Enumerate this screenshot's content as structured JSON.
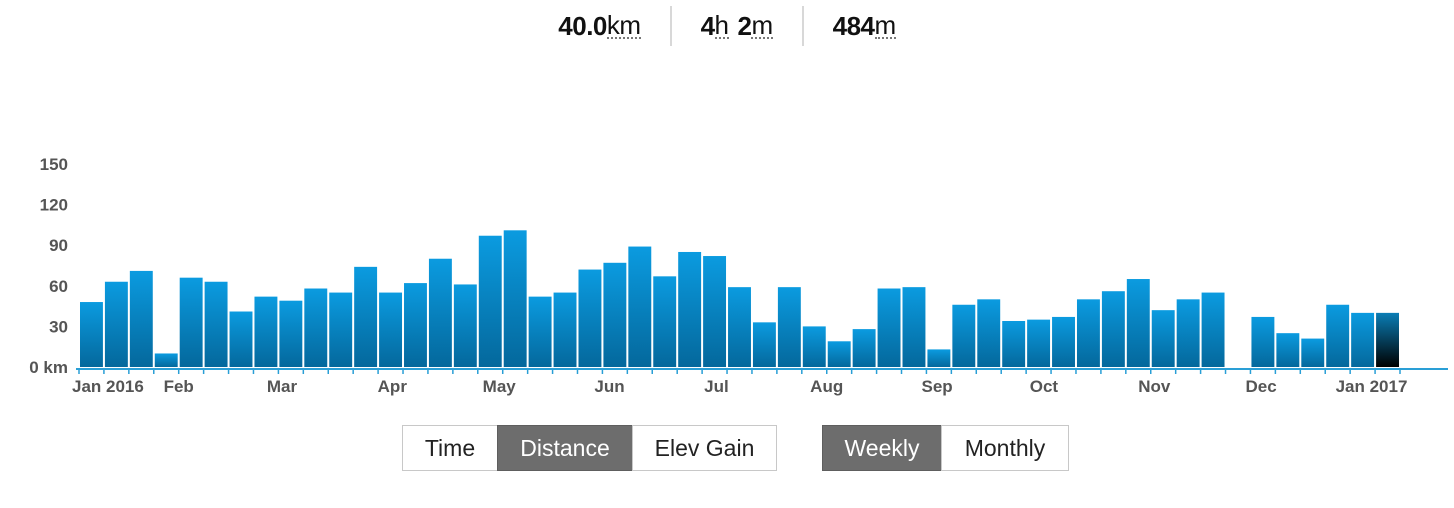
{
  "stats": {
    "distance": {
      "value": "40.0",
      "unit": "km"
    },
    "time": {
      "hours": "4",
      "hours_unit": "h",
      "minutes": "2",
      "minutes_unit": "m"
    },
    "elevation": {
      "value": "484",
      "unit": "m"
    }
  },
  "chart_data": {
    "type": "bar",
    "ylabel": "",
    "y_unit_label": "0 km",
    "ylim": [
      0,
      150
    ],
    "yticks": [
      0,
      30,
      60,
      90,
      120,
      150
    ],
    "grid": false,
    "x_start": "2016-01-04",
    "x_end": "2017-01-02",
    "x_tick_labels": [
      {
        "label": "Jan 2016",
        "date": "2016-01-01"
      },
      {
        "label": "Feb",
        "date": "2016-02-01"
      },
      {
        "label": "Mar",
        "date": "2016-03-01"
      },
      {
        "label": "Apr",
        "date": "2016-04-01"
      },
      {
        "label": "May",
        "date": "2016-05-01"
      },
      {
        "label": "Jun",
        "date": "2016-06-01"
      },
      {
        "label": "Jul",
        "date": "2016-07-01"
      },
      {
        "label": "Aug",
        "date": "2016-08-01"
      },
      {
        "label": "Sep",
        "date": "2016-09-01"
      },
      {
        "label": "Oct",
        "date": "2016-10-01"
      },
      {
        "label": "Nov",
        "date": "2016-11-01"
      },
      {
        "label": "Dec",
        "date": "2016-12-01"
      },
      {
        "label": "Jan 2017",
        "date": "2017-01-01"
      }
    ],
    "series": [
      {
        "values": [
          48,
          63,
          71,
          10,
          66,
          63,
          41,
          52,
          49,
          58,
          55,
          74,
          55,
          62,
          80,
          61,
          97,
          101,
          52,
          55,
          72,
          77,
          89,
          67,
          85,
          82,
          59,
          33,
          59,
          30,
          19,
          28,
          58,
          59,
          13,
          46,
          50,
          34,
          35,
          37,
          50,
          56,
          65,
          42,
          50,
          55,
          0,
          37,
          25,
          21,
          46,
          40,
          40
        ]
      }
    ],
    "highlighted_index": 52,
    "colors": {
      "bar_top": "#0b9be0",
      "bar_bottom": "#04689c",
      "highlight_top": "#0a7db5",
      "highlight_bottom": "#000000",
      "axis": "#2a9fd6"
    }
  },
  "controls": {
    "metric": [
      "Time",
      "Distance",
      "Elev Gain"
    ],
    "metric_selected": "Distance",
    "period": [
      "Weekly",
      "Monthly"
    ],
    "period_selected": "Weekly"
  }
}
